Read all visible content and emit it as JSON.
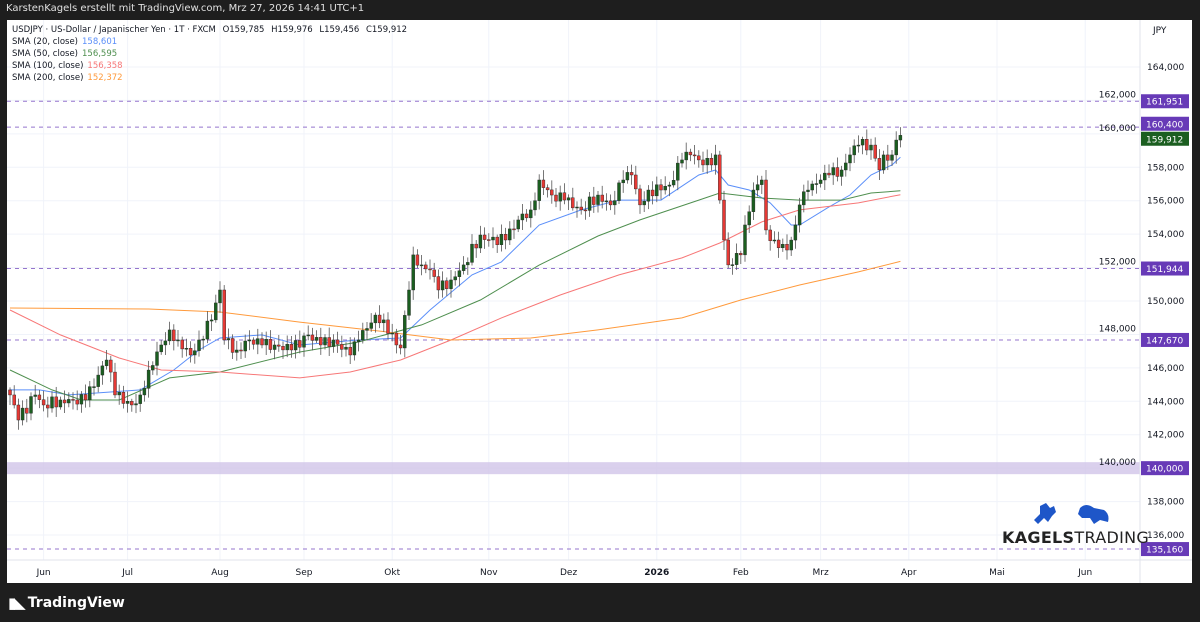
{
  "header": {
    "attribution": "KarstenKagels erstellt mit TradingView.com, Mrz 27, 2026 14:41 UTC+1"
  },
  "legend": {
    "symbol_line": "USDJPY · US-Dollar / Japanischer Yen · 1T · FXCM",
    "ohlc": {
      "o": "O159,785",
      "h": "H159,976",
      "l": "L159,456",
      "c": "C159,912"
    },
    "smas": [
      {
        "label": "SMA (20, close)",
        "value": "158,601",
        "color": "#5b8ff9"
      },
      {
        "label": "SMA (50, close)",
        "value": "156,595",
        "color": "#4f8f4f"
      },
      {
        "label": "SMA (100, close)",
        "value": "156,358",
        "color": "#f77777"
      },
      {
        "label": "SMA (200, close)",
        "value": "152,372",
        "color": "#ff9a3c"
      }
    ]
  },
  "price_axis": {
    "currency": "JPY"
  },
  "footer": {
    "brand": "TradingView"
  },
  "watermark": {
    "brand_bold": "KAGELS",
    "brand_light": "TRADING"
  },
  "chart_data": {
    "type": "candlestick",
    "title": "USDJPY · 1T · FXCM",
    "ylabel": "JPY",
    "ylim": [
      134000,
      166000
    ],
    "y_ticks": [
      "164,000",
      "162,000",
      "160,000",
      "158,000",
      "156,000",
      "154,000",
      "152,000",
      "150,000",
      "148,000",
      "146,000",
      "144,000",
      "142,000",
      "140,000",
      "138,000",
      "136,000"
    ],
    "x_ticks": [
      {
        "label": "Jun",
        "bar": 8
      },
      {
        "label": "Jul",
        "bar": 28
      },
      {
        "label": "Aug",
        "bar": 50
      },
      {
        "label": "Sep",
        "bar": 70
      },
      {
        "label": "Okt",
        "bar": 91
      },
      {
        "label": "Nov",
        "bar": 114
      },
      {
        "label": "Dez",
        "bar": 133
      },
      {
        "label": "2026",
        "bar": 154
      },
      {
        "label": "Feb",
        "bar": 174
      },
      {
        "label": "Mrz",
        "bar": 193
      },
      {
        "label": "Apr",
        "bar": 214
      },
      {
        "label": "Mai",
        "bar": 235
      },
      {
        "label": "Jun",
        "bar": 256
      }
    ],
    "close_anchors": [
      [
        0,
        144.38
      ],
      [
        2,
        142.88
      ],
      [
        6,
        144.38
      ],
      [
        8,
        143.78
      ],
      [
        12,
        144.08
      ],
      [
        15,
        144.08
      ],
      [
        18,
        144.08
      ],
      [
        21,
        145.57
      ],
      [
        23,
        146.47
      ],
      [
        25,
        144.38
      ],
      [
        29,
        143.78
      ],
      [
        31,
        144.38
      ],
      [
        33,
        145.87
      ],
      [
        36,
        147.37
      ],
      [
        38,
        148.27
      ],
      [
        40,
        147.67
      ],
      [
        43,
        146.77
      ],
      [
        45,
        147.67
      ],
      [
        48,
        148.87
      ],
      [
        50,
        150.66
      ],
      [
        51,
        147.67
      ],
      [
        54,
        147.07
      ],
      [
        57,
        147.67
      ],
      [
        60,
        147.37
      ],
      [
        63,
        147.37
      ],
      [
        67,
        147.07
      ],
      [
        71,
        147.97
      ],
      [
        74,
        147.37
      ],
      [
        77,
        147.67
      ],
      [
        81,
        146.77
      ],
      [
        83,
        147.67
      ],
      [
        87,
        149.16
      ],
      [
        89,
        148.87
      ],
      [
        92,
        147.37
      ],
      [
        93,
        147.19
      ],
      [
        95,
        150.66
      ],
      [
        96,
        152.76
      ],
      [
        98,
        152.16
      ],
      [
        100,
        151.86
      ],
      [
        102,
        150.66
      ],
      [
        105,
        151.26
      ],
      [
        108,
        152.16
      ],
      [
        112,
        153.95
      ],
      [
        114,
        153.65
      ],
      [
        118,
        153.65
      ],
      [
        121,
        154.85
      ],
      [
        124,
        155.45
      ],
      [
        126,
        157.24
      ],
      [
        129,
        156.34
      ],
      [
        132,
        156.04
      ],
      [
        136,
        155.45
      ],
      [
        140,
        156.34
      ],
      [
        143,
        155.75
      ],
      [
        146,
        157.24
      ],
      [
        148,
        157.54
      ],
      [
        150,
        155.75
      ],
      [
        152,
        156.64
      ],
      [
        155,
        156.64
      ],
      [
        157,
        156.94
      ],
      [
        160,
        158.44
      ],
      [
        162,
        158.74
      ],
      [
        164,
        158.44
      ],
      [
        167,
        158.14
      ],
      [
        168,
        158.74
      ],
      [
        169,
        156.04
      ],
      [
        170,
        153.65
      ],
      [
        171,
        152.16
      ],
      [
        174,
        152.76
      ],
      [
        175,
        154.55
      ],
      [
        177,
        156.64
      ],
      [
        179,
        157.24
      ],
      [
        180,
        154.25
      ],
      [
        182,
        153.65
      ],
      [
        185,
        153.05
      ],
      [
        187,
        154.55
      ],
      [
        188,
        155.75
      ],
      [
        190,
        156.64
      ],
      [
        193,
        157.24
      ],
      [
        195,
        157.54
      ],
      [
        198,
        157.84
      ],
      [
        200,
        158.74
      ],
      [
        202,
        159.33
      ],
      [
        205,
        159.33
      ],
      [
        207,
        157.84
      ],
      [
        208,
        158.74
      ],
      [
        210,
        158.74
      ],
      [
        211,
        159.63
      ],
      [
        212,
        159.912
      ]
    ],
    "series": [
      {
        "name": "SMA 20",
        "color": "#5b8ff9",
        "points": [
          [
            0,
            144.68
          ],
          [
            7,
            144.68
          ],
          [
            14,
            144.38
          ],
          [
            21,
            144.5
          ],
          [
            31,
            144.68
          ],
          [
            39,
            145.87
          ],
          [
            45,
            147.07
          ],
          [
            50,
            147.79
          ],
          [
            60,
            147.97
          ],
          [
            69,
            147.37
          ],
          [
            83,
            147.67
          ],
          [
            93,
            147.79
          ],
          [
            100,
            149.46
          ],
          [
            110,
            151.56
          ],
          [
            117,
            152.34
          ],
          [
            126,
            154.55
          ],
          [
            136,
            155.45
          ],
          [
            145,
            156.04
          ],
          [
            155,
            156.04
          ],
          [
            164,
            157.54
          ],
          [
            168,
            157.84
          ],
          [
            171,
            156.94
          ],
          [
            176,
            156.64
          ],
          [
            181,
            155.87
          ],
          [
            186,
            154.55
          ],
          [
            188,
            154.55
          ],
          [
            195,
            155.63
          ],
          [
            200,
            156.34
          ],
          [
            205,
            157.54
          ],
          [
            210,
            158.14
          ],
          [
            212,
            158.601
          ]
        ]
      },
      {
        "name": "SMA 50",
        "color": "#4f8f4f",
        "points": [
          [
            0,
            145.87
          ],
          [
            10,
            144.68
          ],
          [
            17,
            144.08
          ],
          [
            26,
            144.08
          ],
          [
            38,
            145.4
          ],
          [
            50,
            145.75
          ],
          [
            69,
            146.95
          ],
          [
            83,
            147.55
          ],
          [
            98,
            148.57
          ],
          [
            112,
            150.06
          ],
          [
            126,
            152.15
          ],
          [
            140,
            153.89
          ],
          [
            150,
            154.85
          ],
          [
            164,
            156.04
          ],
          [
            169,
            156.46
          ],
          [
            179,
            156.16
          ],
          [
            188,
            156.04
          ],
          [
            198,
            156.04
          ],
          [
            205,
            156.46
          ],
          [
            212,
            156.595
          ]
        ]
      },
      {
        "name": "SMA 100",
        "color": "#f77777",
        "points": [
          [
            0,
            149.46
          ],
          [
            12,
            147.97
          ],
          [
            26,
            146.59
          ],
          [
            36,
            145.87
          ],
          [
            50,
            145.75
          ],
          [
            69,
            145.4
          ],
          [
            81,
            145.75
          ],
          [
            93,
            146.47
          ],
          [
            105,
            147.67
          ],
          [
            117,
            148.99
          ],
          [
            131,
            150.36
          ],
          [
            145,
            151.56
          ],
          [
            160,
            152.58
          ],
          [
            169,
            153.47
          ],
          [
            179,
            154.73
          ],
          [
            188,
            155.45
          ],
          [
            202,
            155.87
          ],
          [
            212,
            156.358
          ]
        ]
      },
      {
        "name": "SMA 200",
        "color": "#ff9a3c",
        "points": [
          [
            0,
            149.58
          ],
          [
            33,
            149.52
          ],
          [
            50,
            149.34
          ],
          [
            69,
            148.74
          ],
          [
            90,
            148.14
          ],
          [
            105,
            147.67
          ],
          [
            124,
            147.79
          ],
          [
            140,
            148.27
          ],
          [
            160,
            148.99
          ],
          [
            174,
            150.06
          ],
          [
            188,
            150.96
          ],
          [
            202,
            151.74
          ],
          [
            212,
            152.372
          ]
        ]
      }
    ],
    "horizontal_levels": [
      {
        "value": "161,951",
        "price": 161.951
      },
      {
        "value": "160,400",
        "price": 160.4
      },
      {
        "value": "151,944",
        "price": 151.944
      },
      {
        "value": "147,670",
        "price": 147.67
      },
      {
        "value": "140,000",
        "price": 140.0,
        "band": true
      },
      {
        "value": "135,160",
        "price": 135.16
      }
    ],
    "last_price": {
      "value": "159,912",
      "price": 159.912,
      "color": "#1b5e20"
    },
    "level_color": "#673ab7",
    "up_color": "#1b5e20",
    "down_color": "#e53935"
  }
}
